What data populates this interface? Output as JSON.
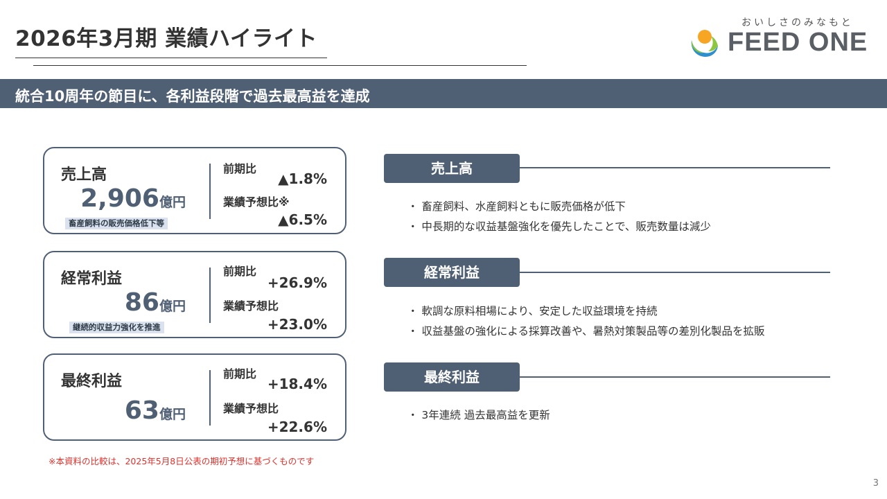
{
  "header": {
    "title": "2026年3月期 業績ハイライト"
  },
  "logo": {
    "tagline": "おいしさのみなもと",
    "name": "FEED ONE",
    "mark_icon": "feed-one-logo-icon"
  },
  "banner": {
    "text": "統合10周年の節目に、各利益段階で過去最高益を達成"
  },
  "cards": [
    {
      "label": "売上高",
      "value": "2,906",
      "unit": "億円",
      "note": "畜産飼料の販売価格低下等",
      "comparisons": [
        {
          "label": "前期比",
          "value": "▲1.8%"
        },
        {
          "label": "業績予想比※",
          "value": "▲6.5%"
        }
      ]
    },
    {
      "label": "経常利益",
      "value": "86",
      "unit": "億円",
      "note": "継続的収益力強化を推進",
      "comparisons": [
        {
          "label": "前期比",
          "value": "+26.9%"
        },
        {
          "label": "業績予想比",
          "value": "+23.0%"
        }
      ]
    },
    {
      "label": "最終利益",
      "value": "63",
      "unit": "億円",
      "note": "",
      "comparisons": [
        {
          "label": "前期比",
          "value": "+18.4%"
        },
        {
          "label": "業績予想比",
          "value": "+22.6%"
        }
      ]
    }
  ],
  "sections": [
    {
      "title": "売上高",
      "bullets": [
        "・ 畜産飼料、水産飼料ともに販売価格が低下",
        "・ 中長期的な収益基盤強化を優先したことで、販売数量は減少"
      ]
    },
    {
      "title": "経常利益",
      "bullets": [
        "・ 軟調な原料相場により、安定した収益環境を持続",
        "・ 収益基盤の強化による採算改善や、暑熱対策製品等の差別化製品を拡販"
      ]
    },
    {
      "title": "最終利益",
      "bullets": [
        "・ 3年連続 過去最高益を更新"
      ]
    }
  ],
  "footnote": "※本資料の比較は、2025年5月8日公表の期初予想に基づくものです",
  "page_number": "3",
  "colors": {
    "primary": "#4f5f74",
    "note_bg": "#d9e2ee",
    "footnote": "#e0312c"
  }
}
